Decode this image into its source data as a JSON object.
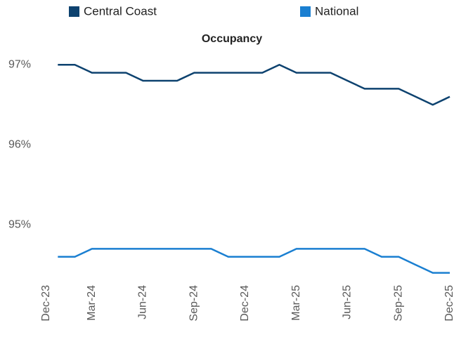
{
  "chart_data": {
    "type": "line",
    "title": "Occupancy",
    "categories": [
      "Dec-23",
      null,
      null,
      "Mar-24",
      null,
      null,
      "Jun-24",
      null,
      null,
      "Sep-24",
      null,
      null,
      "Dec-24",
      null,
      null,
      "Mar-25",
      null,
      null,
      "Jun-25",
      null,
      null,
      "Sep-25",
      null,
      null,
      "Dec-25"
    ],
    "series": [
      {
        "name": "Central Coast",
        "color": "#0d426f",
        "values": [
          null,
          97.0,
          97.0,
          96.9,
          96.9,
          96.9,
          96.8,
          96.8,
          96.8,
          96.9,
          96.9,
          96.9,
          96.9,
          96.9,
          97.0,
          96.9,
          96.9,
          96.9,
          96.8,
          96.7,
          96.7,
          96.7,
          96.6,
          96.5,
          96.6
        ]
      },
      {
        "name": "National",
        "color": "#1a7fd1",
        "values": [
          null,
          94.6,
          94.6,
          94.7,
          94.7,
          94.7,
          94.7,
          94.7,
          94.7,
          94.7,
          94.7,
          94.6,
          94.6,
          94.6,
          94.6,
          94.7,
          94.7,
          94.7,
          94.7,
          94.7,
          94.6,
          94.6,
          94.5,
          94.4,
          94.4
        ]
      }
    ],
    "ylim": [
      94.3,
      97.3
    ],
    "yticks": [
      {
        "value": 95,
        "label": "95%"
      },
      {
        "value": 96,
        "label": "96%"
      },
      {
        "value": 97,
        "label": "97%"
      }
    ],
    "grid": false,
    "legend": "top"
  }
}
